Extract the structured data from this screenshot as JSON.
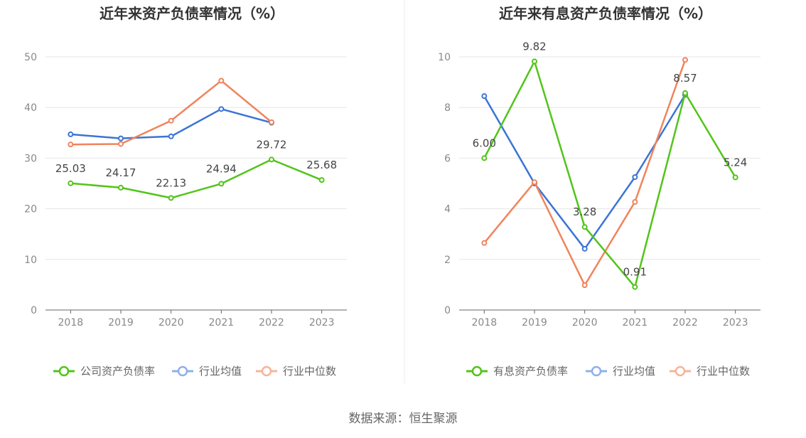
{
  "chart_data": [
    {
      "type": "line",
      "title": "近年来资产负债率情况（%）",
      "categories": [
        "2018",
        "2019",
        "2020",
        "2021",
        "2022",
        "2023"
      ],
      "ylim": [
        0,
        50
      ],
      "yticks": [
        0,
        10,
        20,
        30,
        40,
        50
      ],
      "grid": true,
      "legend_position": "bottom",
      "series": [
        {
          "name": "公司资产负债率",
          "color": "#52c41a",
          "values": [
            25.03,
            24.17,
            22.13,
            24.94,
            29.72,
            25.68
          ],
          "labels": [
            "25.03",
            "24.17",
            "22.13",
            "24.94",
            "29.72",
            "25.68"
          ]
        },
        {
          "name": "行业均值",
          "color": "#3b74d6",
          "values": [
            34.7,
            33.9,
            34.3,
            39.7,
            37.0,
            null
          ]
        },
        {
          "name": "行业中位数",
          "color": "#f0845c",
          "values": [
            32.7,
            32.8,
            37.4,
            45.3,
            37.1,
            null
          ]
        }
      ]
    },
    {
      "type": "line",
      "title": "近年来有息资产负债率情况（%）",
      "categories": [
        "2018",
        "2019",
        "2020",
        "2021",
        "2022",
        "2023"
      ],
      "ylim": [
        0,
        10
      ],
      "yticks": [
        0,
        2,
        4,
        6,
        8,
        10
      ],
      "grid": true,
      "legend_position": "bottom",
      "series": [
        {
          "name": "有息资产负债率",
          "color": "#52c41a",
          "values": [
            6.0,
            9.82,
            3.28,
            0.91,
            8.57,
            5.24
          ],
          "labels": [
            "6.00",
            "9.82",
            "3.28",
            "0.91",
            "8.57",
            "5.24"
          ]
        },
        {
          "name": "行业均值",
          "color": "#3b74d6",
          "values": [
            8.45,
            5.0,
            2.42,
            5.25,
            8.5,
            null
          ]
        },
        {
          "name": "行业中位数",
          "color": "#f0845c",
          "values": [
            2.65,
            5.05,
            0.98,
            4.27,
            9.88,
            null
          ]
        }
      ]
    }
  ],
  "legend_colors": {
    "series_1": "#52c41a",
    "series_2": "#8fb0ea",
    "series_3": "#f5b59a"
  },
  "footer": {
    "source": "数据来源：恒生聚源"
  }
}
